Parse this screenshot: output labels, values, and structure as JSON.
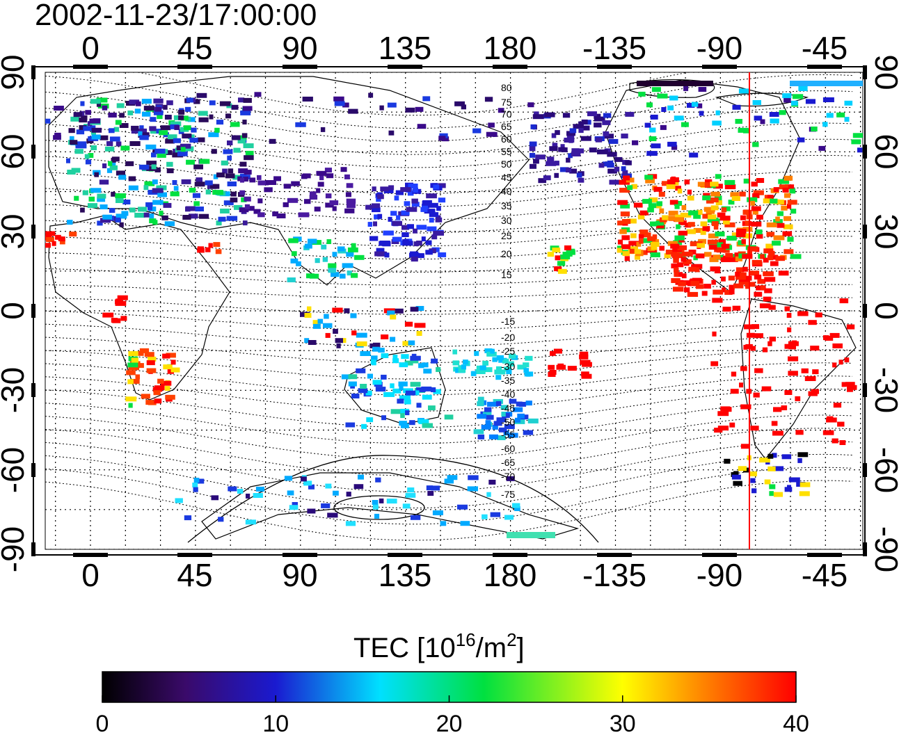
{
  "title": "2002-11-23/17:00:00",
  "top_lon_labels": [
    "0",
    "45",
    "90",
    "135",
    "180",
    "-135",
    "-90",
    "-45"
  ],
  "bottom_lon_labels": [
    "0",
    "45",
    "90",
    "135",
    "180",
    "-135",
    "-90",
    "-45"
  ],
  "left_lat_labels": [
    "90",
    "60",
    "30",
    "0",
    "-30",
    "-60",
    "-90"
  ],
  "right_lat_labels": [
    "90",
    "60",
    "30",
    "0",
    "-30",
    "-60",
    "-90"
  ],
  "contour_labels_north": [
    "80",
    "75",
    "70",
    "65",
    "60",
    "55",
    "50",
    "45",
    "40",
    "35",
    "30",
    "25",
    "20",
    "15"
  ],
  "contour_labels_south": [
    "-15",
    "-20",
    "-25",
    "-30",
    "-35",
    "-40",
    "-45",
    "-50",
    "-55",
    "-60",
    "-65",
    "-70",
    "-75"
  ],
  "colorbar": {
    "title_main": "TEC  [10",
    "title_sup1": "16",
    "title_mid": "/m",
    "title_sup2": "2",
    "title_end": "]",
    "tick_labels": [
      "0",
      "10",
      "20",
      "30",
      "40"
    ],
    "colors": [
      "#000000",
      "#3a0a6a",
      "#1a1ad0",
      "#00e0ff",
      "#00e040",
      "#ffff00",
      "#ff8000",
      "#ff0000"
    ]
  },
  "terminator_color": "#ff0000"
}
